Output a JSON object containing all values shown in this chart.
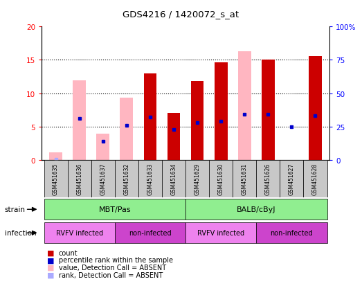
{
  "title": "GDS4216 / 1420072_s_at",
  "samples": [
    "GSM451635",
    "GSM451636",
    "GSM451637",
    "GSM451632",
    "GSM451633",
    "GSM451634",
    "GSM451629",
    "GSM451630",
    "GSM451631",
    "GSM451626",
    "GSM451627",
    "GSM451628"
  ],
  "red_bars": [
    0,
    0,
    0,
    0,
    13.0,
    7.0,
    11.8,
    14.6,
    0,
    15.0,
    0,
    15.6
  ],
  "pink_bars": [
    1.1,
    11.9,
    3.9,
    9.3,
    0,
    0,
    0,
    0,
    16.3,
    0,
    0,
    0
  ],
  "blue_pct": [
    0,
    31,
    14,
    26,
    32,
    23,
    28,
    29,
    34,
    34,
    25,
    33
  ],
  "light_blue_pct": [
    0.5,
    0,
    0,
    0,
    0,
    0,
    0,
    0,
    0,
    0,
    0,
    0
  ],
  "ylim": [
    0,
    20
  ],
  "y2lim": [
    0,
    100
  ],
  "yticks": [
    0,
    5,
    10,
    15,
    20
  ],
  "ytick_labels": [
    "0",
    "5",
    "10",
    "15",
    "20"
  ],
  "y2ticks": [
    0,
    25,
    50,
    75,
    100
  ],
  "y2tick_labels": [
    "0",
    "25",
    "50",
    "75",
    "100%"
  ],
  "red_color": "#cc0000",
  "pink_color": "#ffb6c1",
  "blue_color": "#0000cc",
  "light_blue_color": "#aaaaff",
  "gray_color": "#c8c8c8",
  "green_color": "#90ee90",
  "bg_color": "#ffffff",
  "legend_items": [
    "count",
    "percentile rank within the sample",
    "value, Detection Call = ABSENT",
    "rank, Detection Call = ABSENT"
  ],
  "legend_colors": [
    "#cc0000",
    "#0000cc",
    "#ffb6c1",
    "#aaaaff"
  ],
  "strain_groups": [
    {
      "label": "MBT/Pas",
      "start": 0,
      "end": 6
    },
    {
      "label": "BALB/cByJ",
      "start": 6,
      "end": 12
    }
  ],
  "infection_groups": [
    {
      "label": "RVFV infected",
      "start": 0,
      "end": 3,
      "color": "#ee82ee"
    },
    {
      "label": "non-infected",
      "start": 3,
      "end": 6,
      "color": "#cc44cc"
    },
    {
      "label": "RVFV infected",
      "start": 6,
      "end": 9,
      "color": "#ee82ee"
    },
    {
      "label": "non-infected",
      "start": 9,
      "end": 12,
      "color": "#cc44cc"
    }
  ]
}
